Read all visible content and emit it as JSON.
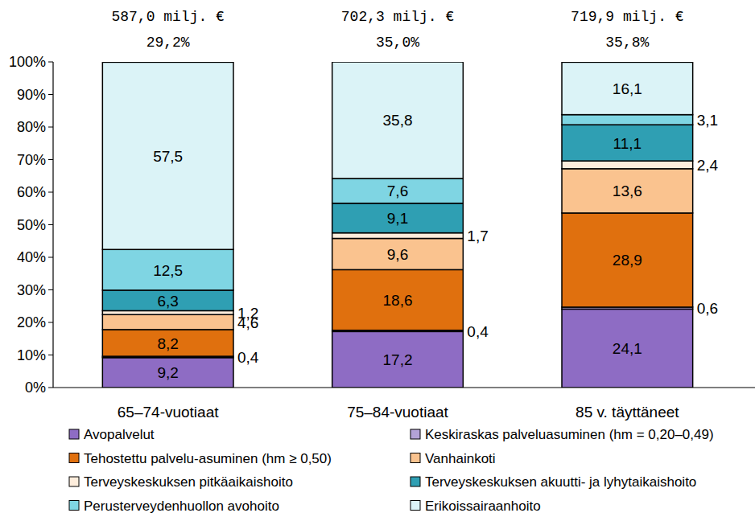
{
  "chart_data": {
    "type": "bar",
    "stacked": true,
    "data_labels": true,
    "grid": false,
    "legend": "bottom",
    "categories": [
      "65–74-vuotiaat",
      "75–84-vuotiaat",
      "85 v. täyttäneet"
    ],
    "annotations": [
      [
        "587,0 milj. €",
        "29,2%"
      ],
      [
        "702,3 milj. €",
        "35,0%"
      ],
      [
        "719,9 milj. €",
        "35,8%"
      ]
    ],
    "ylim": [
      0,
      100
    ],
    "yticks": [
      {
        "value": 0,
        "label": "0%"
      },
      {
        "value": 10,
        "label": "10%"
      },
      {
        "value": 20,
        "label": "20%"
      },
      {
        "value": 30,
        "label": "30%"
      },
      {
        "value": 40,
        "label": "40%"
      },
      {
        "value": 50,
        "label": "50%"
      },
      {
        "value": 60,
        "label": "60%"
      },
      {
        "value": 70,
        "label": "70%"
      },
      {
        "value": 80,
        "label": "80%"
      },
      {
        "value": 90,
        "label": "90%"
      },
      {
        "value": 100,
        "label": "100%"
      }
    ],
    "series": [
      {
        "name": "Avopalvelut",
        "color": "#8e6cc4",
        "values": [
          9.2,
          17.2,
          24.1
        ],
        "value_labels": [
          "9,2",
          "17,2",
          "24,1"
        ]
      },
      {
        "name": "Keskiraskas palveluasuminen (hm = 0,20–0,49)",
        "color": "#b3a2d6",
        "values": [
          0.4,
          0.4,
          0.6
        ],
        "value_labels": [
          "0,4",
          "0,4",
          "0,6"
        ]
      },
      {
        "name": "Tehostettu palvelu-asuminen (hm ≥ 0,50)",
        "color": "#e0700e",
        "values": [
          8.2,
          18.6,
          28.9
        ],
        "value_labels": [
          "8,2",
          "18,6",
          "28,9"
        ]
      },
      {
        "name": "Vanhainkoti",
        "color": "#fac38f",
        "values": [
          4.6,
          9.6,
          13.6
        ],
        "value_labels": [
          "4,6",
          "9,6",
          "13,6"
        ]
      },
      {
        "name": "Terveyskeskuksen pitkäaikaishoito",
        "color": "#fdeddc",
        "values": [
          1.2,
          1.7,
          2.4
        ],
        "value_labels": [
          "1,2",
          "1,7",
          "2,4"
        ]
      },
      {
        "name": "Terveyskeskuksen akuutti- ja lyhytaikaishoito",
        "color": "#2f9fb3",
        "values": [
          6.3,
          9.1,
          11.1
        ],
        "value_labels": [
          "6,3",
          "9,1",
          "11,1"
        ]
      },
      {
        "name": "Perusterveydenhuollon avohoito",
        "color": "#7fd5e3",
        "values": [
          12.5,
          7.6,
          3.1
        ],
        "value_labels": [
          "12,5",
          "7,6",
          "3,1"
        ]
      },
      {
        "name": "Erikoissairaanhoito",
        "color": "#dbf3f7",
        "values": [
          57.5,
          35.8,
          16.1
        ],
        "value_labels": [
          "57,5",
          "35,8",
          "16,1"
        ]
      }
    ]
  }
}
